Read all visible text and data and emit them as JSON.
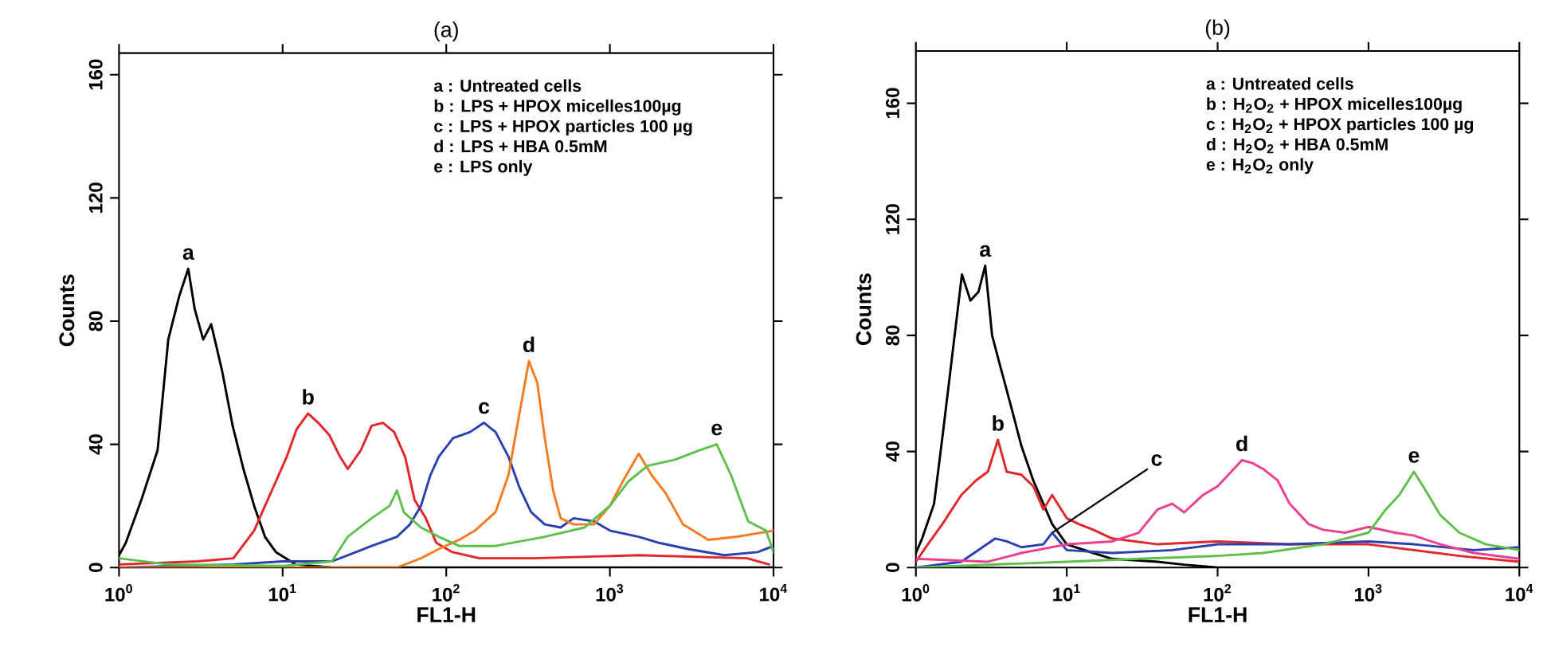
{
  "chart_data": [
    {
      "type": "line",
      "title": "(a)",
      "xlabel": "FL1-H",
      "ylabel": "Counts",
      "log": "x",
      "xlim": [
        1,
        10000
      ],
      "ylim": [
        0,
        167
      ],
      "xticks": [
        {
          "value": 1,
          "label": "10$^{0}$"
        },
        {
          "value": 10,
          "label": "10$^{1}$"
        },
        {
          "value": 100,
          "label": "10$^{2}$"
        },
        {
          "value": 1000,
          "label": "10$^{3}$"
        },
        {
          "value": 10000,
          "label": "10$^{4}$"
        }
      ],
      "yticks": [
        0,
        40,
        80,
        120,
        160
      ],
      "annotations": [
        "a : Untreated cells",
        "b : LPS + HPOX micelles100µg",
        "c : LPS + HPOX particles 100 µg",
        "d : LPS + HBA 0.5mM",
        "e : LPS only"
      ],
      "series": [
        {
          "name": "a",
          "color": "#000000",
          "x": [
            1,
            1.1,
            1.37,
            1.72,
            2.0,
            2.33,
            2.65,
            2.9,
            3.27,
            3.66,
            4.26,
            4.95,
            5.76,
            6.7,
            7.8,
            9.1,
            12,
            20,
            50,
            100,
            1000,
            10000
          ],
          "values": [
            4,
            8,
            22,
            38,
            74,
            88,
            97,
            84,
            74,
            79,
            64,
            46,
            32,
            20,
            10,
            5,
            1,
            0,
            0,
            0,
            0,
            0
          ]
        },
        {
          "name": "b",
          "color": "#e3262a",
          "x": [
            1,
            3,
            5,
            6.7,
            7.8,
            9.1,
            10.6,
            12.2,
            14.3,
            16.5,
            19.3,
            22.4,
            25,
            30,
            35,
            41,
            48,
            56,
            64,
            75,
            87,
            109,
            160,
            339,
            1500,
            6900,
            9400
          ],
          "values": [
            1,
            2,
            3,
            12,
            20,
            28,
            36,
            45,
            50,
            47,
            43,
            36,
            32,
            38,
            46,
            47,
            44,
            36,
            22,
            16,
            8,
            5,
            3,
            3,
            4,
            3,
            1
          ]
        },
        {
          "name": "c",
          "color": "#2a3fb0",
          "x": [
            1,
            5,
            10,
            20,
            25,
            35,
            50,
            60,
            70,
            80,
            90,
            110,
            140,
            170,
            200,
            240,
            280,
            330,
            400,
            500,
            600,
            800,
            1000,
            1500,
            2000,
            3000,
            5000,
            8000,
            10000
          ],
          "values": [
            0,
            1,
            2,
            2,
            4,
            7,
            10,
            14,
            20,
            30,
            36,
            42,
            44,
            47,
            44,
            36,
            26,
            18,
            14,
            13,
            16,
            15,
            12,
            10,
            8,
            6,
            4,
            5,
            7
          ]
        },
        {
          "name": "d",
          "color": "#f47b20",
          "x": [
            1,
            50,
            70,
            90,
            120,
            150,
            200,
            240,
            280,
            320,
            360,
            400,
            450,
            500,
            600,
            800,
            1000,
            1200,
            1500,
            1800,
            2200,
            2800,
            4000,
            6000,
            10000
          ],
          "values": [
            0,
            0,
            3,
            6,
            9,
            12,
            18,
            30,
            50,
            67,
            60,
            42,
            25,
            16,
            14,
            14,
            20,
            28,
            37,
            30,
            24,
            14,
            9,
            10,
            12
          ]
        },
        {
          "name": "e",
          "color": "#5cc04a",
          "x": [
            1,
            2,
            10,
            20,
            25,
            35,
            45,
            50,
            55,
            70,
            90,
            120,
            200,
            400,
            700,
            1000,
            1300,
            1700,
            2500,
            3500,
            4500,
            5500,
            7000,
            9000,
            10000
          ],
          "values": [
            3,
            1,
            0.5,
            2,
            10,
            16,
            20,
            25,
            18,
            13,
            10,
            7,
            7,
            10,
            13,
            20,
            28,
            33,
            35,
            38,
            40,
            30,
            15,
            12,
            5
          ]
        }
      ]
    },
    {
      "type": "line",
      "title": "(b)",
      "xlabel": "FL1-H",
      "ylabel": "Counts",
      "log": "x",
      "xlim": [
        1,
        10000
      ],
      "ylim": [
        0,
        178
      ],
      "xticks": [
        {
          "value": 1,
          "label": "10$^{0}$"
        },
        {
          "value": 10,
          "label": "10$^{1}$"
        },
        {
          "value": 100,
          "label": "10$^{2}$"
        },
        {
          "value": 1000,
          "label": "10$^{3}$"
        },
        {
          "value": 10000,
          "label": "10$^{4}$"
        }
      ],
      "yticks": [
        0,
        40,
        80,
        120,
        160
      ],
      "annotations": [
        "a : Untreated cells",
        "b : H$_{2}$O$_{2}$ + HPOX micelles100µg",
        "c : H$_{2}$O$_{2}$ + HPOX particles 100 µg",
        "d : H$_{2}$O$_{2}$ + HBA 0.5mM",
        "e : H$_{2}$O$_{2}$ only"
      ],
      "series": [
        {
          "name": "a",
          "color": "#000000",
          "x": [
            1,
            1.1,
            1.32,
            1.5,
            1.66,
            2.02,
            2.3,
            2.6,
            2.88,
            3.2,
            3.6,
            4.3,
            5,
            6,
            7,
            8,
            10,
            15,
            20,
            40,
            60,
            100,
            10000
          ],
          "values": [
            5,
            10,
            22,
            45,
            64,
            101,
            92,
            95,
            104,
            80,
            70,
            55,
            42,
            30,
            22,
            15,
            8,
            5,
            3,
            2,
            1,
            0,
            0
          ]
        },
        {
          "name": "b",
          "color": "#e3262a",
          "x": [
            1,
            1.2,
            1.5,
            2,
            2.5,
            3,
            3.5,
            4,
            5,
            6,
            7,
            8,
            10,
            12,
            15,
            20,
            40,
            100,
            300,
            1000,
            2000,
            4000,
            10000
          ],
          "values": [
            2,
            8,
            15,
            25,
            30,
            33,
            44,
            33,
            32,
            28,
            20,
            25,
            17,
            15,
            13,
            10,
            8,
            9,
            8,
            8,
            6,
            4,
            2
          ]
        },
        {
          "name": "c",
          "color": "#2a3fb0",
          "x": [
            1,
            2,
            3.36,
            4,
            5,
            7,
            8,
            10,
            20,
            50,
            100,
            300,
            1000,
            2000,
            5000,
            10000
          ],
          "values": [
            0,
            2,
            10,
            9,
            7,
            8,
            12,
            6,
            5,
            6,
            8,
            8,
            9,
            8,
            6,
            7
          ]
        },
        {
          "name": "d",
          "color": "#ec3f8f",
          "x": [
            1,
            3,
            5,
            10,
            20,
            30,
            40,
            50,
            60,
            80,
            100,
            145,
            170,
            200,
            250,
            300,
            400,
            500,
            700,
            1000,
            1500,
            2000,
            3000,
            5000,
            10000
          ],
          "values": [
            3,
            2,
            5,
            8,
            9,
            12,
            20,
            22,
            19,
            25,
            28,
            37,
            36,
            34,
            30,
            22,
            15,
            13,
            12,
            14,
            12,
            11,
            8,
            5,
            3
          ]
        },
        {
          "name": "e",
          "color": "#5cc04a",
          "x": [
            1,
            10,
            30,
            100,
            200,
            500,
            1000,
            1300,
            1600,
            2000,
            2300,
            3000,
            4000,
            6000,
            10000
          ],
          "values": [
            0,
            2,
            3,
            4,
            5,
            8,
            12,
            20,
            25,
            33,
            28,
            18,
            12,
            8,
            6
          ]
        }
      ]
    }
  ]
}
